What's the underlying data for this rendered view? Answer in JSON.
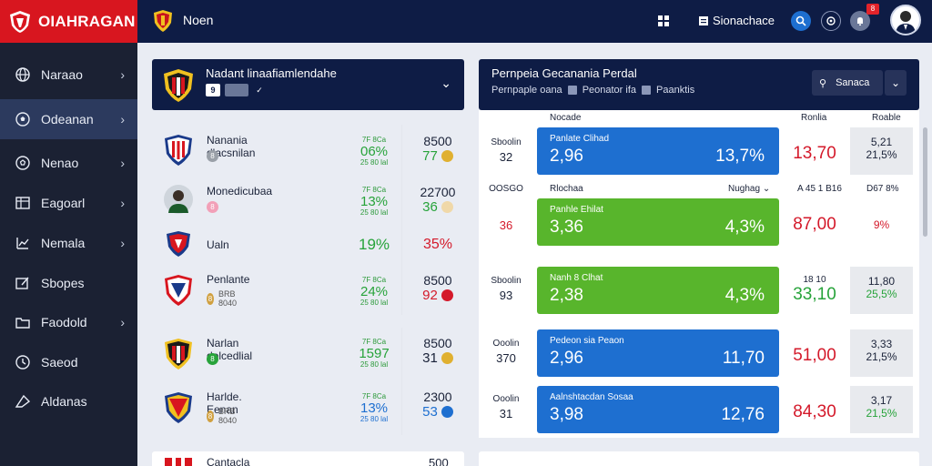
{
  "app": {
    "brand": "OIAHRAGAN",
    "top_title": "Noen",
    "top_button": "Sionachace",
    "notif_count": "8"
  },
  "sidebar": {
    "items": [
      {
        "label": "Naraao",
        "icon": "globe-icon",
        "chevron": true
      },
      {
        "label": "Odeanan",
        "icon": "soccer-ball-icon",
        "chevron": true,
        "active": true
      },
      {
        "label": "Nenao",
        "icon": "soccer-ball-icon",
        "chevron": true
      },
      {
        "label": "Eagoarl",
        "icon": "table-icon",
        "chevron": true
      },
      {
        "label": "Nemala",
        "icon": "chart-icon",
        "chevron": true
      },
      {
        "label": "Sbopes",
        "icon": "edit-icon",
        "chevron": false
      },
      {
        "label": "Faodold",
        "icon": "folder-icon",
        "chevron": true
      },
      {
        "label": "Saeod",
        "icon": "clock-icon",
        "chevron": false
      },
      {
        "label": "Aldanas",
        "icon": "tag-icon",
        "chevron": false
      }
    ]
  },
  "left_panel": {
    "title": "Nadant linaafiamlendahe",
    "chip1": "9",
    "chip2": "",
    "chevron": "⌄"
  },
  "matches": [
    {
      "team": "Nanania dlacsnilan",
      "meta": "8",
      "meta_color": "#9aa0a8",
      "pct_label": "7F 8Ca",
      "pct": "06%",
      "pct_sub": "25 80 lal",
      "odd_top": "8500",
      "odd_bot": "77",
      "odd_color": "#27a33a",
      "dot_color": "#e0b030"
    },
    {
      "team": "Monedicubaa",
      "meta": "8",
      "meta_color": "#f2a0b8",
      "pct_label": "7F 8Ca",
      "pct": "13%",
      "pct_sub": "25 80 lal",
      "odd_top": "22700",
      "odd_bot": "36",
      "odd_color": "#27a33a",
      "dot_color": "#f0d8a8"
    },
    {
      "team": "Ualn",
      "meta": "",
      "meta_color": "",
      "pct_label": "",
      "pct": "19%",
      "pct_sub": "",
      "odd_top": "",
      "odd_bot": "35%",
      "odd_color": "#d4192a",
      "dot_color": ""
    },
    {
      "team": "Penlante",
      "meta": "8",
      "meta_color": "#d0a040",
      "meta_text": "BRB 8040",
      "pct_label": "7F 8Ca",
      "pct": "24%",
      "pct_sub": "25 80 lal",
      "odd_top": "8500",
      "odd_bot": "92",
      "odd_color": "#d4192a",
      "dot_color": "#d4192a"
    },
    {
      "team": "Narlan dolcedlial",
      "meta": "8",
      "meta_color": "#27a33a",
      "pct_label": "7F 8Ca",
      "pct": "1597",
      "pct_sub": "25 80 lal",
      "odd_top": "8500",
      "odd_bot": "31",
      "odd_color": "#1a2238",
      "dot_color": "#e0b030"
    },
    {
      "team": "Harlde. Eenan",
      "meta": "8",
      "meta_color": "#d0a040",
      "meta_text": "BRB 8040",
      "pct_label": "7F 8Ca",
      "pct": "13%",
      "pct_sub": "25 80 lal",
      "odd_top": "2300",
      "odd_bot": "53",
      "odd_color": "#1e6fd0",
      "dot_color": "#1e6fd0"
    }
  ],
  "right_panel": {
    "title": "Pernpeia Gecanania Perdal",
    "sub1": "Pernpaple oana",
    "sub2": "Peonator ifa",
    "sub3": "Paanktis",
    "button": "Sanaca",
    "col_heads": [
      "Nocade",
      "Ronlia",
      "Roable"
    ],
    "row_heads": {
      "left": "OOSGO",
      "mid": "Rlochaa",
      "right1": "Nughag",
      "right2": "A 45 1 B16",
      "right3": "D67 8%"
    }
  },
  "odds_rows": [
    {
      "side_label": "Sboolin",
      "side_num": "32",
      "bar_label": "Panlate Clihad",
      "v1": "2,96",
      "v2": "13,7%",
      "bar": "blue",
      "red": "13,70",
      "gray_a": "5,21",
      "gray_b": "21,5%",
      "gray_b_color": "#1a2238"
    },
    {
      "side_label": "",
      "side_num": "36",
      "bar_label": "Panhle Ehilat",
      "v1": "3,36",
      "v2": "4,3%",
      "bar": "green",
      "red": "87,00",
      "gray_a": "",
      "gray_b": "9%",
      "gray_b_color": "#d4192a"
    },
    {
      "side_label": "Sboolin",
      "side_num": "93",
      "bar_label": "Nanh 8 Clhat",
      "v1": "2,38",
      "v2": "4,3%",
      "bar": "green",
      "red": "33,10",
      "red_top": "18 10",
      "gray_a": "11,80",
      "gray_b": "25,5%",
      "gray_b_color": "#27a33a"
    },
    {
      "side_label": "Ooolin",
      "side_num": "370",
      "bar_label": "Pedeon sia Peaon",
      "v1": "2,96",
      "v2": "11,70",
      "bar": "blue",
      "red": "51,00",
      "gray_a": "3,33",
      "gray_b": "21,5%",
      "gray_b_color": "#1a2238"
    },
    {
      "side_label": "Ooolin",
      "side_num": "31",
      "bar_label": "Aalnshtacdan Sosaa",
      "v1": "3,98",
      "v2": "12,76",
      "bar": "blue",
      "red": "84,30",
      "gray_a": "3,17",
      "gray_b": "21,5%",
      "gray_b_color": "#27a33a"
    }
  ],
  "bottom": {
    "left_team": "Cantacla",
    "left_odd": "500"
  },
  "colors": {
    "navy": "#0e1c45",
    "red": "#d8161f",
    "blue": "#1e6fd0",
    "green": "#58b52c"
  }
}
